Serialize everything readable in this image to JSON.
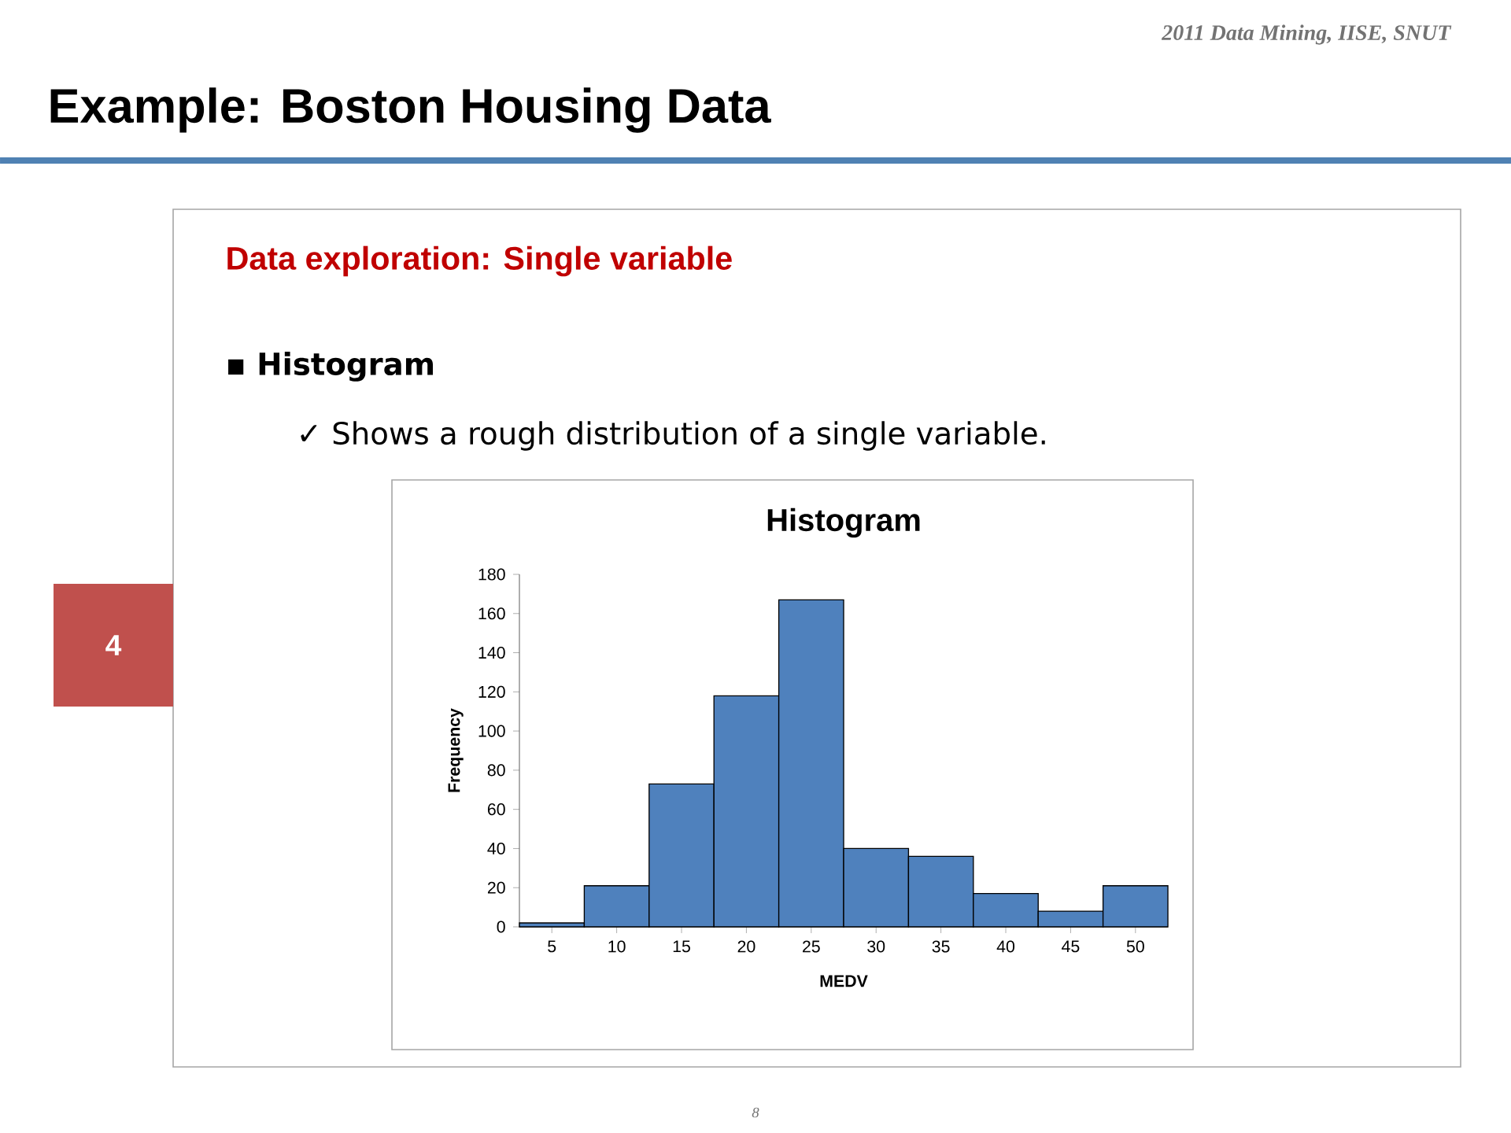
{
  "chart_data": {
    "type": "bar",
    "title": "Histogram",
    "subtitle": "Data exploration: Single variable",
    "xlabel": "MEDV",
    "ylabel": "Frequency",
    "categories": [
      "5",
      "10",
      "15",
      "20",
      "25",
      "30",
      "35",
      "40",
      "45",
      "50"
    ],
    "values": [
      2,
      21,
      73,
      118,
      167,
      40,
      36,
      17,
      8,
      21
    ],
    "color": "#4f81bd",
    "ylim": [
      0,
      180
    ],
    "yticks": [
      0,
      20,
      40,
      60,
      80,
      100,
      120,
      140,
      160,
      180
    ],
    "annotations": [
      "2011 Data Mining, IISE, SNUT",
      "Example: Boston Housing Data",
      "▪ Histogram",
      "✓ Shows a rough distribution of a single variable.",
      "4",
      "8"
    ]
  }
}
